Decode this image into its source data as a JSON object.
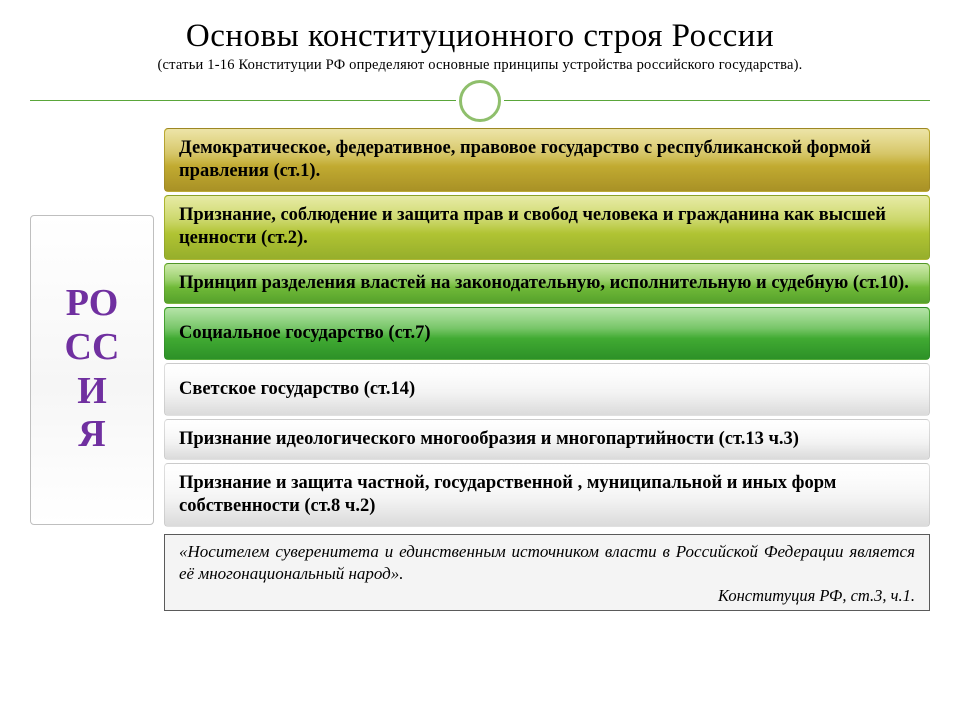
{
  "header": {
    "title": "Основы конституционного строя России",
    "subtitle": "(статьи 1-16 Конституции РФ определяют основные принципы устройства российского государства).",
    "title_fontsize": 33,
    "subtitle_fontsize": 14.5,
    "title_color": "#000000",
    "accent_color": "#5aa63a",
    "ring_color": "#8fbf6c"
  },
  "sidebar": {
    "label": "РО\nСС\nИ\nЯ",
    "color": "#7030a0",
    "fontsize": 38,
    "border_color": "#bfbfbf",
    "bg": "#ffffff"
  },
  "items": [
    {
      "text": "Демократическое, федеративное, правовое государство с республиканской формой правления (ст.1).",
      "bg_top": "#d6c33e",
      "bg_bottom": "#b39a28",
      "height_lines": 2
    },
    {
      "text": "Признание, соблюдение и защита прав и свобод человека и гражданина как высшей ценности (ст.2).",
      "bg_top": "#c9d23a",
      "bg_bottom": "#9fb92e",
      "height_lines": 2
    },
    {
      "text": "Принцип разделения властей на законодательную, исполнительную и судебную (ст.10).",
      "bg_top": "#8fcf47",
      "bg_bottom": "#5bab2e",
      "height_lines": 2
    },
    {
      "text": "Социальное государство (ст.7)",
      "bg_top": "#5bc23e",
      "bg_bottom": "#2f9a2a",
      "height_lines": 1
    },
    {
      "text": "Светское государство (ст.14)",
      "bg_top": "#ffffff",
      "bg_bottom": "#e8e8e8",
      "height_lines": 1
    },
    {
      "text": "Признание идеологического многообразия и многопартийности (ст.13 ч.3)",
      "bg_top": "#ffffff",
      "bg_bottom": "#e8e8e8",
      "height_lines": 2
    },
    {
      "text": "Признание и защита частной, государственной , муниципальной и иных форм собственности (ст.8 ч.2)",
      "bg_top": "#ffffff",
      "bg_bottom": "#e8e8e8",
      "height_lines": 2
    }
  ],
  "item_style": {
    "font_size": 18.5,
    "font_weight": "bold",
    "text_color": "#000000",
    "border_radius": 4,
    "pad_single": "14px 14px",
    "pad_double": "8px 14px"
  },
  "quote": {
    "text": "«Носителем суверенитета и единственным источником власти в Российской Федерации является её многонациональный народ».",
    "cite": "Конституция РФ, ст.3, ч.1.",
    "border_color": "#5a5a5a",
    "bg": "#f4f4f4",
    "fontsize": 17
  }
}
